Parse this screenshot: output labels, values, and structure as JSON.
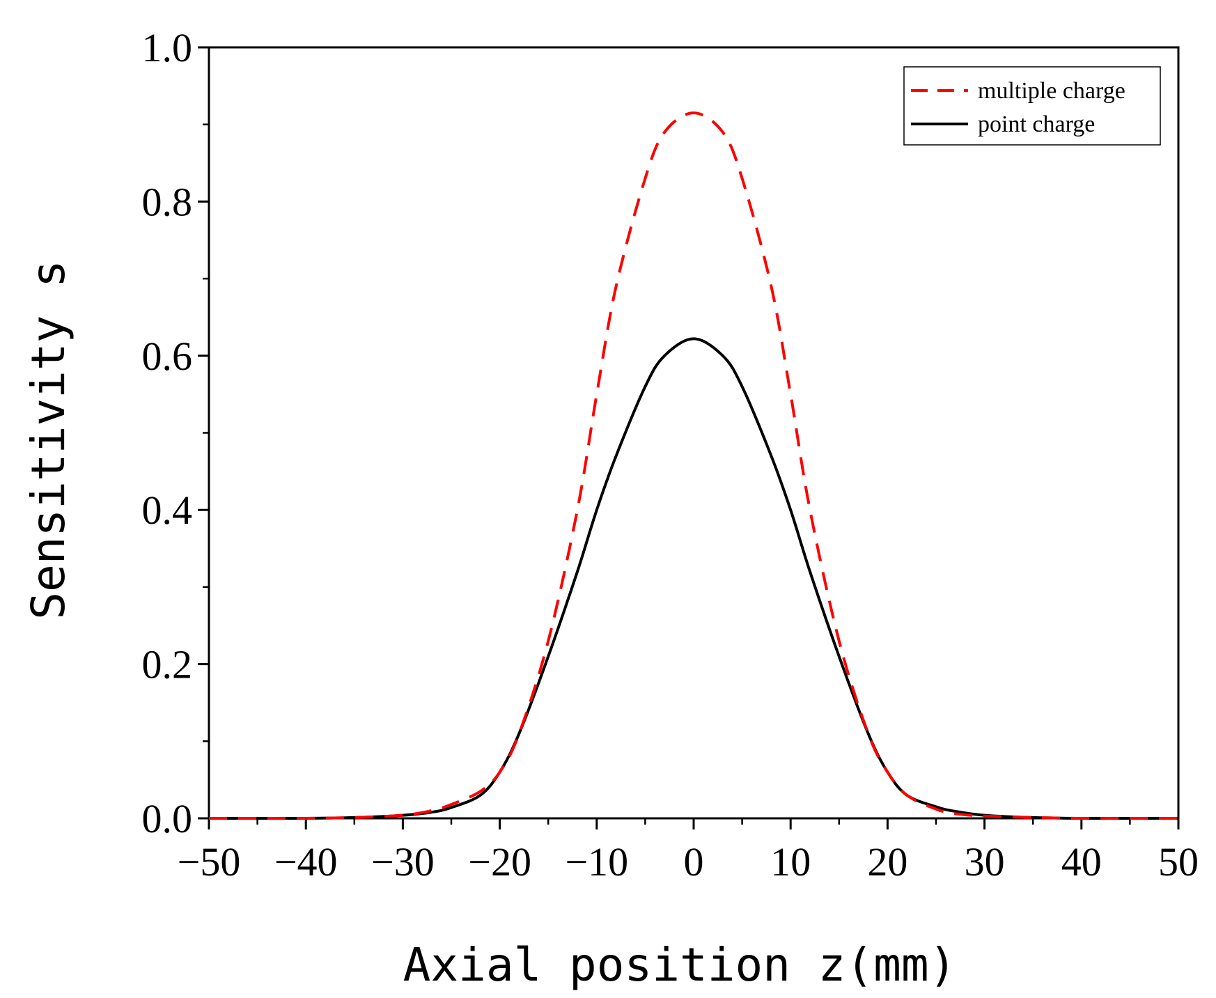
{
  "chart_data": {
    "type": "line",
    "title": "",
    "xlabel": "Axial position z(mm)",
    "ylabel": "Sensitivity s",
    "xlim": [
      -50,
      50
    ],
    "ylim": [
      0.0,
      1.0
    ],
    "x_ticks": [
      "−50",
      "−40",
      "−30",
      "−20",
      "−10",
      "0",
      "10",
      "20",
      "30",
      "40",
      "50"
    ],
    "x_tick_values": [
      -50,
      -40,
      -30,
      -20,
      -10,
      0,
      10,
      20,
      30,
      40,
      50
    ],
    "y_ticks": [
      "0.0",
      "0.2",
      "0.4",
      "0.6",
      "0.8",
      "1.0"
    ],
    "y_tick_values": [
      0.0,
      0.2,
      0.4,
      0.6,
      0.8,
      1.0
    ],
    "grid": false,
    "legend_position": "top-right",
    "x": [
      -50,
      -45,
      -40,
      -35,
      -30,
      -27,
      -25,
      -22,
      -20,
      -18,
      -15,
      -12,
      -10,
      -8,
      -5,
      -3,
      0,
      3,
      5,
      8,
      10,
      12,
      15,
      18,
      20,
      22,
      25,
      27,
      30,
      35,
      40,
      45,
      50
    ],
    "series": [
      {
        "name": "multiple charge",
        "style": "dashed",
        "color": "#ff0000",
        "values": [
          0.0,
          0.0,
          0.0,
          0.001,
          0.004,
          0.01,
          0.018,
          0.035,
          0.06,
          0.11,
          0.23,
          0.4,
          0.55,
          0.69,
          0.83,
          0.89,
          0.915,
          0.89,
          0.83,
          0.69,
          0.55,
          0.4,
          0.23,
          0.11,
          0.06,
          0.03,
          0.012,
          0.006,
          0.003,
          0.001,
          0.0,
          0.0,
          0.0
        ]
      },
      {
        "name": "point charge",
        "style": "solid",
        "color": "#000000",
        "values": [
          0.0,
          0.0,
          0.0,
          0.001,
          0.004,
          0.008,
          0.014,
          0.03,
          0.06,
          0.11,
          0.21,
          0.32,
          0.4,
          0.47,
          0.56,
          0.6,
          0.622,
          0.6,
          0.56,
          0.47,
          0.4,
          0.32,
          0.21,
          0.11,
          0.06,
          0.03,
          0.015,
          0.009,
          0.004,
          0.001,
          0.0,
          0.0,
          0.0
        ]
      }
    ]
  }
}
